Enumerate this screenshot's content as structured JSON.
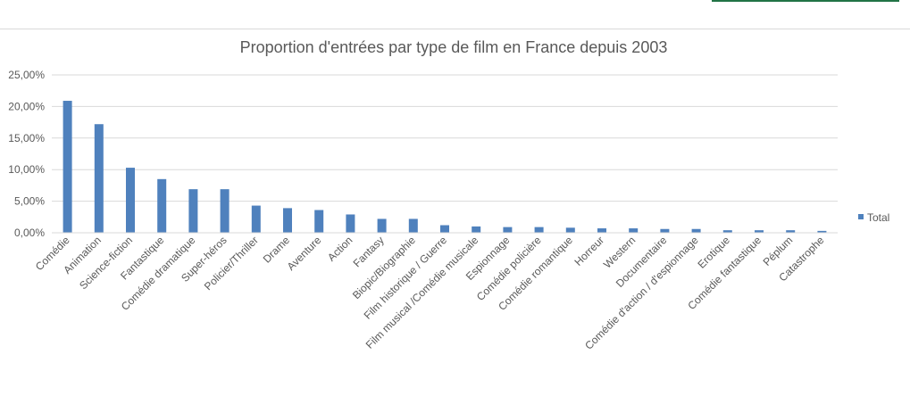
{
  "chart_data": {
    "type": "bar",
    "title": "Proportion d'entrées par type de film en France depuis 2003",
    "xlabel": "",
    "ylabel": "",
    "ylim": [
      0,
      25
    ],
    "yticks": [
      "0,00%",
      "5,00%",
      "10,00%",
      "15,00%",
      "20,00%",
      "25,00%"
    ],
    "ytick_values": [
      0,
      5,
      10,
      15,
      20,
      25
    ],
    "grid": true,
    "legend_position": "right",
    "bar_color": "#4f81bd",
    "grid_color": "#d9d9d9",
    "categories": [
      "Comédie",
      "Animation",
      "Science-fiction",
      "Fantastique",
      "Comédie dramatique",
      "Super-héros",
      "Policier/Thriller",
      "Drame",
      "Aventure",
      "Action",
      "Fantasy",
      "Biopic/Biographie",
      "Film historique / Guerre",
      "Film musical /Comédie musicale",
      "Espionnage",
      "Comédie policière",
      "Comédie romantique",
      "Horreur",
      "Western",
      "Documentaire",
      "Comédie d'action / d'espionnage",
      "Erotique",
      "Comédie fantastique",
      "Péplum",
      "Catastrophe"
    ],
    "series": [
      {
        "name": "Total",
        "values": [
          20.9,
          17.2,
          10.3,
          8.5,
          6.9,
          6.9,
          4.3,
          3.9,
          3.6,
          2.9,
          2.2,
          2.2,
          1.2,
          1.0,
          0.9,
          0.9,
          0.8,
          0.7,
          0.7,
          0.6,
          0.6,
          0.4,
          0.4,
          0.4,
          0.3
        ]
      }
    ]
  }
}
